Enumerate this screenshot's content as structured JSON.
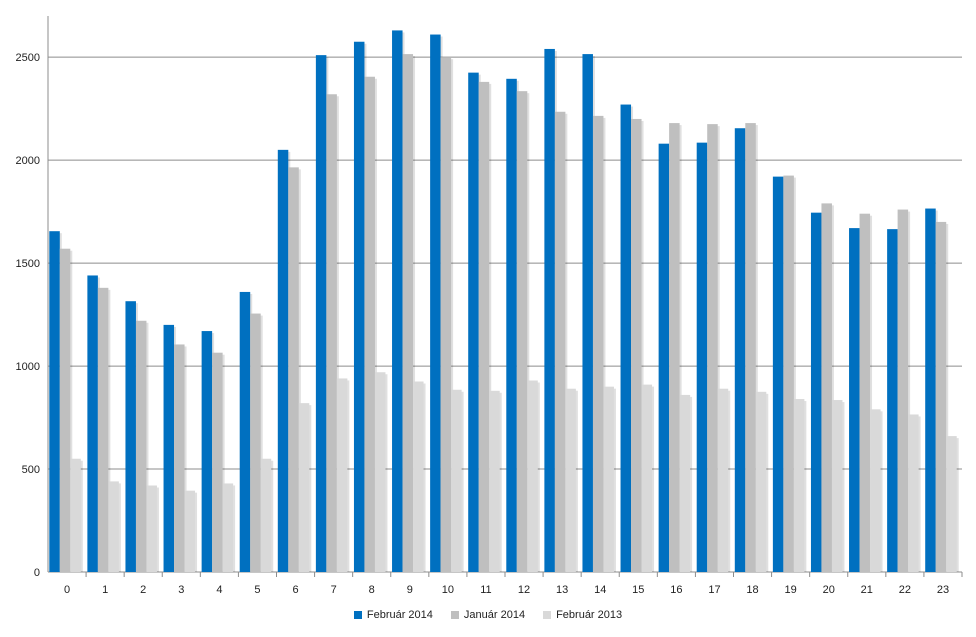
{
  "chart_data": {
    "type": "bar",
    "categories": [
      "0",
      "1",
      "2",
      "3",
      "4",
      "5",
      "6",
      "7",
      "8",
      "9",
      "10",
      "11",
      "12",
      "13",
      "14",
      "15",
      "16",
      "17",
      "18",
      "19",
      "20",
      "21",
      "22",
      "23"
    ],
    "series": [
      {
        "name": "Február 2014",
        "color": "#0070c0",
        "values": [
          1655,
          1440,
          1315,
          1200,
          1170,
          1360,
          2050,
          2510,
          2575,
          2630,
          2610,
          2425,
          2395,
          2540,
          2515,
          2270,
          2080,
          2085,
          2155,
          1920,
          1745,
          1670,
          1665,
          1765
        ]
      },
      {
        "name": "Január 2014",
        "color": "#bfbfbf",
        "values": [
          1570,
          1380,
          1220,
          1105,
          1065,
          1255,
          1965,
          2320,
          2405,
          2515,
          2500,
          2380,
          2335,
          2235,
          2215,
          2200,
          2180,
          2175,
          2180,
          1925,
          1790,
          1740,
          1760,
          1700
        ]
      },
      {
        "name": "Február 2013",
        "color": "#d9d9d9",
        "values": [
          550,
          440,
          420,
          395,
          430,
          550,
          820,
          940,
          970,
          925,
          885,
          880,
          930,
          890,
          900,
          910,
          860,
          890,
          875,
          840,
          835,
          790,
          765,
          660
        ]
      }
    ],
    "yticks": [
      "0",
      "500",
      "1000",
      "1500",
      "2000",
      "2500"
    ],
    "ylim": [
      0,
      2700
    ],
    "grid": true,
    "legend_position": "bottom"
  }
}
